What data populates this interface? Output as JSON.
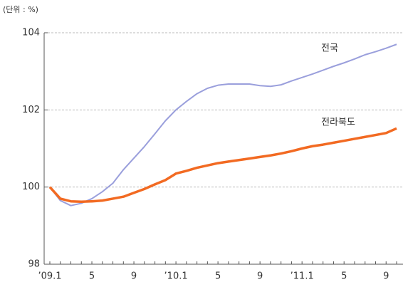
{
  "chart_data": {
    "type": "line",
    "unit_note": "(단위 : %)",
    "categories": [
      "’09.1",
      null,
      null,
      null,
      "5",
      null,
      null,
      null,
      "9",
      null,
      null,
      null,
      "’10.1",
      null,
      null,
      null,
      "5",
      null,
      null,
      null,
      "9",
      null,
      null,
      null,
      "’11.1",
      null,
      null,
      null,
      "5",
      null,
      null,
      null,
      "9",
      null
    ],
    "series": [
      {
        "name": "전국",
        "color": "#9a9fdc",
        "values": [
          100.0,
          99.65,
          99.52,
          99.58,
          99.7,
          99.88,
          100.1,
          100.45,
          100.75,
          101.05,
          101.38,
          101.72,
          102.0,
          102.22,
          102.42,
          102.56,
          102.64,
          102.67,
          102.67,
          102.67,
          102.63,
          102.61,
          102.65,
          102.75,
          102.84,
          102.93,
          103.03,
          103.13,
          103.22,
          103.32,
          103.43,
          103.51,
          103.6,
          103.7
        ]
      },
      {
        "name": "전라북도",
        "color": "#f26a22",
        "values": [
          100.0,
          99.7,
          99.63,
          99.62,
          99.63,
          99.65,
          99.7,
          99.75,
          99.85,
          99.95,
          100.07,
          100.18,
          100.35,
          100.42,
          100.5,
          100.56,
          100.62,
          100.66,
          100.7,
          100.74,
          100.78,
          100.82,
          100.87,
          100.93,
          101.0,
          101.06,
          101.1,
          101.15,
          101.2,
          101.25,
          101.3,
          101.35,
          101.4,
          101.52
        ]
      }
    ],
    "ylim": [
      98,
      104
    ],
    "yticks": [
      98,
      100,
      102,
      104
    ],
    "grid": true
  }
}
